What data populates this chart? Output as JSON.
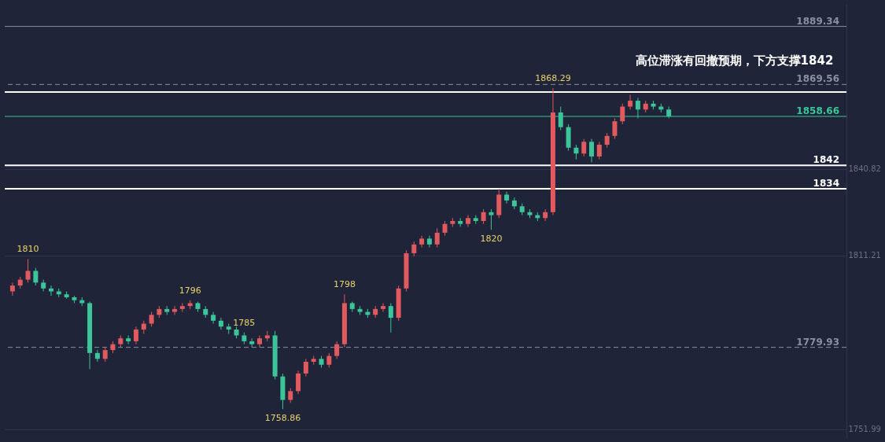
{
  "chart_data": {
    "type": "candlestick",
    "title": "高位滞涨有回撤预期，下方支撑1842",
    "categories": [
      null,
      null,
      null,
      null,
      null,
      null,
      null,
      null,
      null,
      null,
      null,
      null,
      null,
      null,
      null,
      null,
      null,
      null,
      null,
      null,
      null,
      null,
      null,
      null,
      null,
      null,
      null,
      null,
      null,
      null,
      null,
      null,
      null,
      null,
      null,
      null,
      null,
      null,
      null,
      null,
      null,
      null,
      null,
      null,
      null,
      null,
      null,
      null,
      null,
      null,
      null,
      null,
      null,
      null,
      null,
      null,
      null,
      null,
      null,
      null,
      null,
      null,
      null,
      null,
      null,
      null,
      null,
      null,
      null,
      null,
      null,
      null,
      null,
      null,
      null,
      null,
      null,
      null,
      null,
      null,
      null,
      null,
      null,
      null,
      null,
      null,
      null,
      null,
      null,
      null,
      null,
      null,
      null,
      null,
      null,
      null,
      null,
      null,
      null,
      null,
      null,
      null,
      null,
      null,
      null,
      null,
      null,
      null
    ],
    "ohlc": [
      [
        1799,
        1802,
        1797.5,
        1801
      ],
      [
        1801,
        1804,
        1800,
        1803
      ],
      [
        1803,
        1810,
        1802,
        1806
      ],
      [
        1806,
        1807,
        1801,
        1802
      ],
      [
        1802,
        1803,
        1799,
        1800
      ],
      [
        1800,
        1801,
        1797.5,
        1799
      ],
      [
        1799,
        1800,
        1797,
        1798
      ],
      [
        1798,
        1799,
        1796.5,
        1797
      ],
      [
        1797,
        1797.5,
        1795,
        1796
      ],
      [
        1796,
        1797,
        1794,
        1795
      ],
      [
        1795,
        1795.5,
        1772.5,
        1778
      ],
      [
        1778,
        1779,
        1775,
        1776
      ],
      [
        1776,
        1780,
        1775,
        1779
      ],
      [
        1779,
        1782,
        1778,
        1781
      ],
      [
        1781,
        1784,
        1780,
        1783
      ],
      [
        1783,
        1784,
        1781,
        1782
      ],
      [
        1782,
        1787,
        1781,
        1786
      ],
      [
        1786,
        1789,
        1784.5,
        1788
      ],
      [
        1788,
        1792,
        1787,
        1791
      ],
      [
        1791,
        1794,
        1790,
        1793
      ],
      [
        1793,
        1794,
        1791,
        1792
      ],
      [
        1792,
        1794,
        1791,
        1793
      ],
      [
        1793,
        1795,
        1792,
        1794
      ],
      [
        1794,
        1796,
        1793,
        1795
      ],
      [
        1795,
        1795.5,
        1792,
        1793
      ],
      [
        1793,
        1794,
        1790,
        1791
      ],
      [
        1791,
        1792,
        1788,
        1789
      ],
      [
        1789,
        1790,
        1786,
        1787
      ],
      [
        1787,
        1788,
        1784.5,
        1786
      ],
      [
        1786,
        1787,
        1783,
        1784
      ],
      [
        1784,
        1785,
        1781,
        1782
      ],
      [
        1782,
        1783,
        1780,
        1781
      ],
      [
        1781,
        1784,
        1780,
        1783
      ],
      [
        1783,
        1785.5,
        1782,
        1784
      ],
      [
        1784,
        1785.5,
        1769,
        1770
      ],
      [
        1770,
        1771,
        1758.86,
        1762
      ],
      [
        1762,
        1766,
        1761,
        1765
      ],
      [
        1765,
        1772,
        1764,
        1771
      ],
      [
        1771,
        1776,
        1770,
        1775
      ],
      [
        1775,
        1777,
        1774,
        1776
      ],
      [
        1776,
        1777,
        1773,
        1774
      ],
      [
        1774,
        1778,
        1773,
        1777
      ],
      [
        1777,
        1782,
        1776,
        1781
      ],
      [
        1781,
        1798,
        1780,
        1795
      ],
      [
        1795,
        1795.5,
        1792,
        1793
      ],
      [
        1793,
        1794,
        1791,
        1792
      ],
      [
        1792,
        1793,
        1790,
        1791
      ],
      [
        1791,
        1794,
        1790,
        1793
      ],
      [
        1793,
        1795,
        1792,
        1794
      ],
      [
        1794,
        1795,
        1785,
        1790
      ],
      [
        1790,
        1801,
        1789,
        1800
      ],
      [
        1800,
        1813,
        1799,
        1812
      ],
      [
        1812,
        1816,
        1811,
        1815
      ],
      [
        1815,
        1818,
        1814,
        1817
      ],
      [
        1817,
        1818,
        1814,
        1815
      ],
      [
        1815,
        1820.5,
        1814,
        1819
      ],
      [
        1819,
        1823,
        1818,
        1822
      ],
      [
        1822,
        1824,
        1821,
        1823
      ],
      [
        1823,
        1824,
        1821,
        1822
      ],
      [
        1822,
        1825,
        1821,
        1824
      ],
      [
        1824,
        1825,
        1822,
        1823
      ],
      [
        1823,
        1827,
        1822,
        1826
      ],
      [
        1826,
        1827,
        1820,
        1825
      ],
      [
        1825,
        1834,
        1824,
        1832
      ],
      [
        1832,
        1833,
        1829,
        1830
      ],
      [
        1830,
        1831,
        1827,
        1828
      ],
      [
        1828,
        1829,
        1825,
        1826
      ],
      [
        1826,
        1827,
        1824,
        1825
      ],
      [
        1825,
        1826,
        1823,
        1824
      ],
      [
        1824,
        1827,
        1823,
        1826
      ],
      [
        1826,
        1868.29,
        1825,
        1860
      ],
      [
        1860,
        1862,
        1854,
        1855
      ],
      [
        1855,
        1856,
        1847,
        1848
      ],
      [
        1848,
        1849,
        1844,
        1846
      ],
      [
        1846,
        1851,
        1845,
        1850
      ],
      [
        1850,
        1851,
        1843,
        1845
      ],
      [
        1845,
        1850,
        1844,
        1849
      ],
      [
        1849,
        1853,
        1848,
        1852
      ],
      [
        1852,
        1858,
        1851,
        1857
      ],
      [
        1857,
        1863,
        1856,
        1862
      ],
      [
        1862,
        1866,
        1861,
        1864
      ],
      [
        1864,
        1865,
        1858,
        1861
      ],
      [
        1861,
        1864,
        1860,
        1863
      ],
      [
        1863,
        1864,
        1861,
        1862
      ],
      [
        1862,
        1863,
        1860,
        1861
      ],
      [
        1861,
        1862,
        1858,
        1858.66
      ],
      null,
      null,
      null,
      null,
      null,
      null,
      null,
      null,
      null,
      null,
      null,
      null,
      null,
      null,
      null,
      null,
      null,
      null,
      null,
      null,
      null,
      null
    ],
    "colors": [
      "#e05a5f",
      "#e05a5f",
      "#e05a5f",
      "#3cc59a",
      "#3cc59a",
      "#3cc59a",
      "#3cc59a",
      "#3cc59a",
      "#3cc59a",
      "#3cc59a",
      "#3cc59a",
      "#3cc59a",
      "#e05a5f",
      "#e05a5f",
      "#e05a5f",
      "#3cc59a",
      "#e05a5f",
      "#e05a5f",
      "#e05a5f",
      "#e05a5f",
      "#3cc59a",
      "#e05a5f",
      "#e05a5f",
      "#e05a5f",
      "#3cc59a",
      "#3cc59a",
      "#3cc59a",
      "#3cc59a",
      "#3cc59a",
      "#3cc59a",
      "#3cc59a",
      "#3cc59a",
      "#e05a5f",
      "#e05a5f",
      "#3cc59a",
      "#3cc59a",
      "#e05a5f",
      "#e05a5f",
      "#e05a5f",
      "#e05a5f",
      "#3cc59a",
      "#e05a5f",
      "#e05a5f",
      "#e05a5f",
      "#3cc59a",
      "#3cc59a",
      "#3cc59a",
      "#e05a5f",
      "#e05a5f",
      "#3cc59a",
      "#e05a5f",
      "#e05a5f",
      "#e05a5f",
      "#e05a5f",
      "#3cc59a",
      "#e05a5f",
      "#e05a5f",
      "#e05a5f",
      "#3cc59a",
      "#e05a5f",
      "#3cc59a",
      "#e05a5f",
      "#3cc59a",
      "#e05a5f",
      "#3cc59a",
      "#3cc59a",
      "#3cc59a",
      "#3cc59a",
      "#3cc59a",
      "#e05a5f",
      "#e05a5f",
      "#3cc59a",
      "#3cc59a",
      "#3cc59a",
      "#e05a5f",
      "#3cc59a",
      "#e05a5f",
      "#e05a5f",
      "#e05a5f",
      "#e05a5f",
      "#e05a5f",
      "#3cc59a",
      "#e05a5f",
      "#3cc59a",
      "#3cc59a",
      "#3cc59a",
      null,
      null,
      null,
      null,
      null,
      null,
      null,
      null,
      null,
      null,
      null,
      null,
      null,
      null,
      null,
      null,
      null,
      null,
      null,
      null,
      null,
      null
    ],
    "ylim": [
      1749,
      1897
    ],
    "yticks": [
      {
        "value": 1751.99,
        "label": "1751.99"
      },
      {
        "value": 1811.21,
        "label": "1811.21"
      },
      {
        "value": 1840.82,
        "label": "1840.82"
      }
    ],
    "grid": "y",
    "tick_labels": "y",
    "ref_lines": [
      {
        "axis": "y",
        "value": 1889.34,
        "label": "1889.34",
        "color": "#8a8fa3",
        "line_style": "solid"
      },
      {
        "axis": "y",
        "value": 1869.56,
        "label": "1869.56",
        "color": "#8a8fa3",
        "line_style": "dashed"
      },
      {
        "axis": "y",
        "value": 1858.66,
        "label": "1858.66",
        "color": "#3cc59a",
        "line_style": "solid"
      },
      {
        "axis": "y",
        "value": 1779.93,
        "label": "1779.93",
        "color": "#8a8fa3",
        "line_style": "dashed"
      },
      {
        "axis": "y",
        "value": 1867,
        "color": "#ffffff",
        "line_style": "solid"
      },
      {
        "axis": "y",
        "value": 1842,
        "label": "1842",
        "color": "#ffffff",
        "line_style": "solid"
      },
      {
        "axis": "y",
        "value": 1834,
        "label": "1834",
        "color": "#ffffff",
        "line_style": "solid"
      }
    ],
    "annotations": [
      {
        "text": "1810",
        "y": 1810
      },
      {
        "text": "1796",
        "y": 1796
      },
      {
        "text": "1758.86",
        "y": 1758.86
      },
      {
        "text": "1798",
        "y": 1798
      },
      {
        "text": "1785",
        "y": 1785
      },
      {
        "text": "1820",
        "y": 1820
      },
      {
        "text": "1868.29",
        "y": 1868.29
      }
    ]
  }
}
